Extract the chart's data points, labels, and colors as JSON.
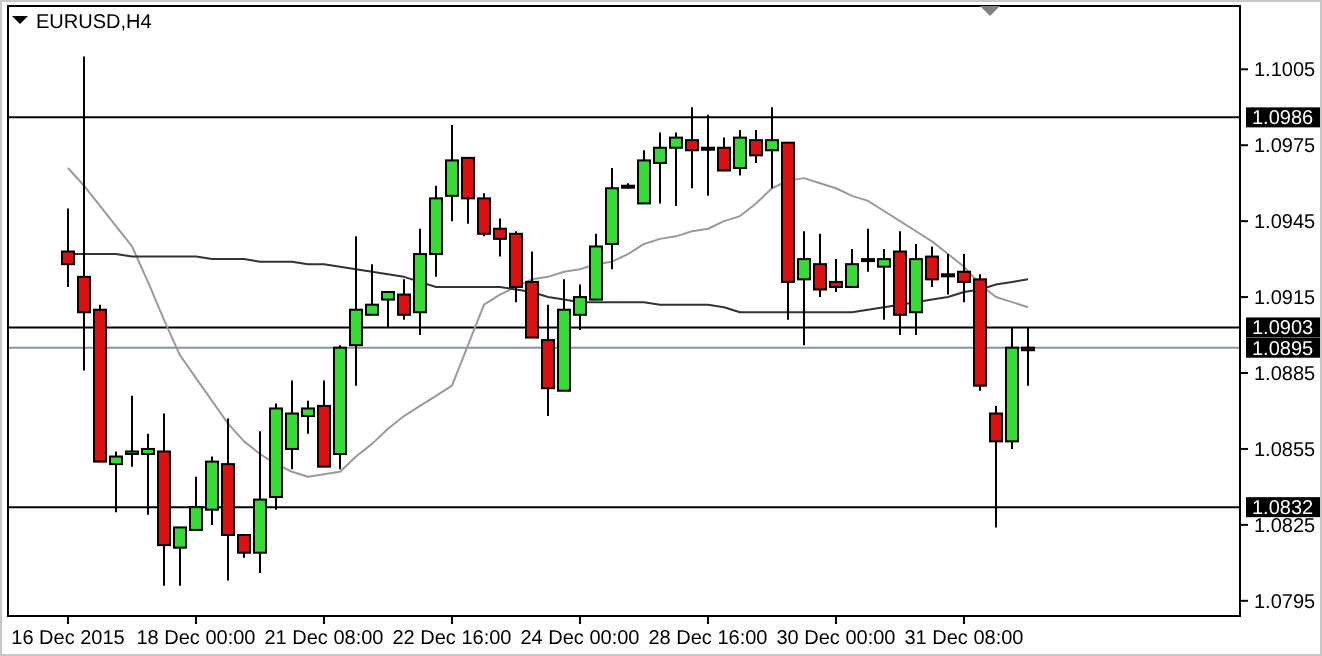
{
  "chart_data": {
    "type": "candlestick",
    "title": "EURUSD,H4",
    "categories": [
      "16 Dec 2015",
      null,
      null,
      null,
      null,
      null,
      null,
      null,
      "18 Dec 00:00",
      null,
      null,
      null,
      null,
      null,
      null,
      null,
      "21 Dec 08:00",
      null,
      null,
      null,
      null,
      null,
      null,
      null,
      "22 Dec 16:00",
      null,
      null,
      null,
      null,
      null,
      null,
      null,
      "24 Dec 00:00",
      null,
      null,
      null,
      null,
      null,
      null,
      null,
      "28 Dec 16:00",
      null,
      null,
      null,
      null,
      null,
      null,
      null,
      "30 Dec 00:00",
      null,
      null,
      null,
      null,
      null,
      null,
      null,
      "31 Dec 08:00",
      null,
      null,
      null,
      null
    ],
    "colors": [
      "#dd1111",
      "#dd1111",
      "#dd1111",
      "#33dd33",
      "#33dd33",
      "#33dd33",
      "#dd1111",
      "#33dd33",
      "#33dd33",
      "#33dd33",
      "#dd1111",
      "#dd1111",
      "#33dd33",
      "#33dd33",
      "#33dd33",
      "#33dd33",
      "#dd1111",
      "#33dd33",
      "#33dd33",
      "#33dd33",
      "#33dd33",
      "#dd1111",
      "#33dd33",
      "#33dd33",
      "#33dd33",
      "#dd1111",
      "#dd1111",
      "#dd1111",
      "#dd1111",
      "#dd1111",
      "#dd1111",
      "#33dd33",
      "#33dd33",
      "#33dd33",
      "#33dd33",
      "#33dd33",
      "#33dd33",
      "#33dd33",
      "#33dd33",
      "#dd1111",
      "#33dd33",
      "#dd1111",
      "#33dd33",
      "#dd1111",
      "#33dd33",
      "#dd1111",
      "#33dd33",
      "#dd1111",
      "#dd1111",
      "#33dd33",
      "#33dd33",
      "#33dd33",
      "#dd1111",
      "#33dd33",
      "#dd1111",
      "#33dd33",
      "#dd1111",
      "#dd1111",
      "#dd1111",
      "#33dd33",
      "#dd1111"
    ],
    "ohlc": [
      [
        1.0933,
        1.095,
        1.0919,
        1.0928
      ],
      [
        1.0923,
        1.101,
        1.0886,
        1.0909
      ],
      [
        1.091,
        1.0912,
        1.085,
        1.085
      ],
      [
        1.0849,
        1.0854,
        1.083,
        1.0852
      ],
      [
        1.0853,
        1.0876,
        1.0848,
        1.0854
      ],
      [
        1.0853,
        1.0861,
        1.0829,
        1.0855
      ],
      [
        1.0854,
        1.0869,
        1.0801,
        1.0817
      ],
      [
        1.0816,
        1.0824,
        1.0801,
        1.0824
      ],
      [
        1.0823,
        1.0844,
        1.0823,
        1.0832
      ],
      [
        1.0831,
        1.0852,
        1.0825,
        1.085
      ],
      [
        1.0849,
        1.0867,
        1.0803,
        1.0821
      ],
      [
        1.0821,
        1.0821,
        1.0812,
        1.0814
      ],
      [
        1.0814,
        1.0862,
        1.0806,
        1.0835
      ],
      [
        1.0836,
        1.0873,
        1.0831,
        1.0871
      ],
      [
        1.0855,
        1.0882,
        1.0847,
        1.0869
      ],
      [
        1.0868,
        1.0874,
        1.0861,
        1.0871
      ],
      [
        1.0872,
        1.0882,
        1.0848,
        1.0848
      ],
      [
        1.0853,
        1.0896,
        1.0847,
        1.0895
      ],
      [
        1.0896,
        1.0939,
        1.088,
        1.091
      ],
      [
        1.0908,
        1.0928,
        1.0908,
        1.0912
      ],
      [
        1.0914,
        1.0917,
        1.0903,
        1.0917
      ],
      [
        1.0916,
        1.0922,
        1.0906,
        1.0908
      ],
      [
        1.0909,
        1.0942,
        1.09,
        1.0932
      ],
      [
        1.0932,
        1.0959,
        1.0923,
        1.0954
      ],
      [
        1.0955,
        1.0983,
        1.0945,
        1.0969
      ],
      [
        1.097,
        1.097,
        1.0944,
        1.0954
      ],
      [
        1.0954,
        1.0956,
        1.0939,
        1.094
      ],
      [
        1.0942,
        1.0946,
        1.0931,
        1.0938
      ],
      [
        1.094,
        1.0941,
        1.0913,
        1.0919
      ],
      [
        1.0921,
        1.0933,
        1.0899,
        1.0899
      ],
      [
        1.0898,
        1.0912,
        1.0868,
        1.0879
      ],
      [
        1.0878,
        1.0922,
        1.0878,
        1.091
      ],
      [
        1.0908,
        1.092,
        1.0902,
        1.0915
      ],
      [
        1.0914,
        1.094,
        1.0914,
        1.0935
      ],
      [
        1.0936,
        1.0966,
        1.0926,
        1.0958
      ],
      [
        1.0959,
        1.096,
        1.0958,
        1.0959
      ],
      [
        1.0952,
        1.0973,
        1.0952,
        1.0969
      ],
      [
        1.0968,
        1.098,
        1.0952,
        1.0974
      ],
      [
        1.0974,
        1.098,
        1.0951,
        1.0978
      ],
      [
        1.0977,
        1.099,
        1.0958,
        1.0973
      ],
      [
        1.0974,
        1.0987,
        1.0955,
        1.0974
      ],
      [
        1.0974,
        1.0978,
        1.0965,
        1.0965
      ],
      [
        1.0966,
        1.0981,
        1.0963,
        1.0978
      ],
      [
        1.0977,
        1.0981,
        1.0968,
        1.0971
      ],
      [
        1.0973,
        1.099,
        1.0958,
        1.0977
      ],
      [
        1.0976,
        1.0976,
        1.0906,
        1.0921
      ],
      [
        1.0922,
        1.0941,
        1.0896,
        1.093
      ],
      [
        1.0928,
        1.094,
        1.0915,
        1.0918
      ],
      [
        1.0921,
        1.093,
        1.0917,
        1.0919
      ],
      [
        1.0919,
        1.0934,
        1.0919,
        1.0928
      ],
      [
        1.093,
        1.0942,
        1.0925,
        1.093
      ],
      [
        1.0927,
        1.0934,
        1.0906,
        1.093
      ],
      [
        1.0933,
        1.0941,
        1.09,
        1.0908
      ],
      [
        1.0909,
        1.0936,
        1.09,
        1.093
      ],
      [
        1.0931,
        1.0935,
        1.0919,
        1.0922
      ],
      [
        1.0924,
        1.0932,
        1.0916,
        1.0924
      ],
      [
        1.0925,
        1.0932,
        1.0913,
        1.0921
      ],
      [
        1.0922,
        1.0924,
        1.0878,
        1.088
      ],
      [
        1.0869,
        1.0872,
        1.0824,
        1.0858
      ],
      [
        1.0858,
        1.0903,
        1.0855,
        1.0895
      ],
      [
        1.0895,
        1.0903,
        1.088,
        1.0894
      ]
    ],
    "series": [
      {
        "type": "line",
        "color": "#9a9a9a",
        "values": [
          1.0966,
          1.0959,
          1.0951,
          1.0943,
          1.0935,
          1.0921,
          1.0906,
          1.0892,
          1.0883,
          1.0874,
          1.0865,
          1.0858,
          1.0853,
          1.0849,
          1.0846,
          1.0844,
          1.0845,
          1.0846,
          1.0852,
          1.0857,
          1.0863,
          1.0868,
          1.0872,
          1.0876,
          1.088,
          1.0896,
          1.0912,
          1.0916,
          1.0919,
          1.0922,
          1.0923,
          1.0925,
          1.0926,
          1.0928,
          1.0929,
          1.0932,
          1.0936,
          1.0938,
          1.0939,
          1.0941,
          1.0942,
          1.0945,
          1.0947,
          1.0952,
          1.0958,
          1.0961,
          1.0962,
          1.096,
          1.0958,
          1.0955,
          1.0953,
          1.0949,
          1.0945,
          1.0941,
          1.0937,
          1.0932,
          1.0927,
          1.092,
          1.0915,
          1.0913,
          1.0911
        ]
      },
      {
        "type": "line",
        "color": "#333333",
        "values": [
          1.0932,
          1.0932,
          1.0932,
          1.0932,
          1.0931,
          1.0931,
          1.0931,
          1.0931,
          1.0931,
          1.093,
          1.093,
          1.093,
          1.0929,
          1.0929,
          1.0929,
          1.0928,
          1.0928,
          1.0927,
          1.0926,
          1.0925,
          1.0924,
          1.0923,
          1.0921,
          1.0919,
          1.0919,
          1.0919,
          1.0919,
          1.0919,
          1.0918,
          1.0917,
          1.0915,
          1.0914,
          1.0913,
          1.0913,
          1.0913,
          1.0913,
          1.0913,
          1.0912,
          1.0912,
          1.0912,
          1.0912,
          1.0911,
          1.0909,
          1.0909,
          1.0909,
          1.0909,
          1.0909,
          1.0909,
          1.0909,
          1.0909,
          1.091,
          1.0911,
          1.0912,
          1.0913,
          1.0914,
          1.0915,
          1.0917,
          1.0918,
          1.092,
          1.0921,
          1.0922
        ]
      }
    ],
    "ylim": [
      1.0789,
      1.103
    ],
    "yticks": [
      1.0795,
      1.0825,
      1.0855,
      1.0885,
      1.0915,
      1.0945,
      1.0975,
      1.1005
    ],
    "ref_lines": [
      {
        "axis": "y",
        "value": 1.0986,
        "label": "1.0986",
        "color": "#000000"
      },
      {
        "axis": "y",
        "value": 1.0903,
        "label": "1.0903",
        "color": "#000000"
      },
      {
        "axis": "y",
        "value": 1.0895,
        "label": "1.0895",
        "color": "#8494a4"
      },
      {
        "axis": "y",
        "value": 1.0832,
        "label": "1.0832",
        "color": "#000000"
      }
    ],
    "grid": false
  }
}
